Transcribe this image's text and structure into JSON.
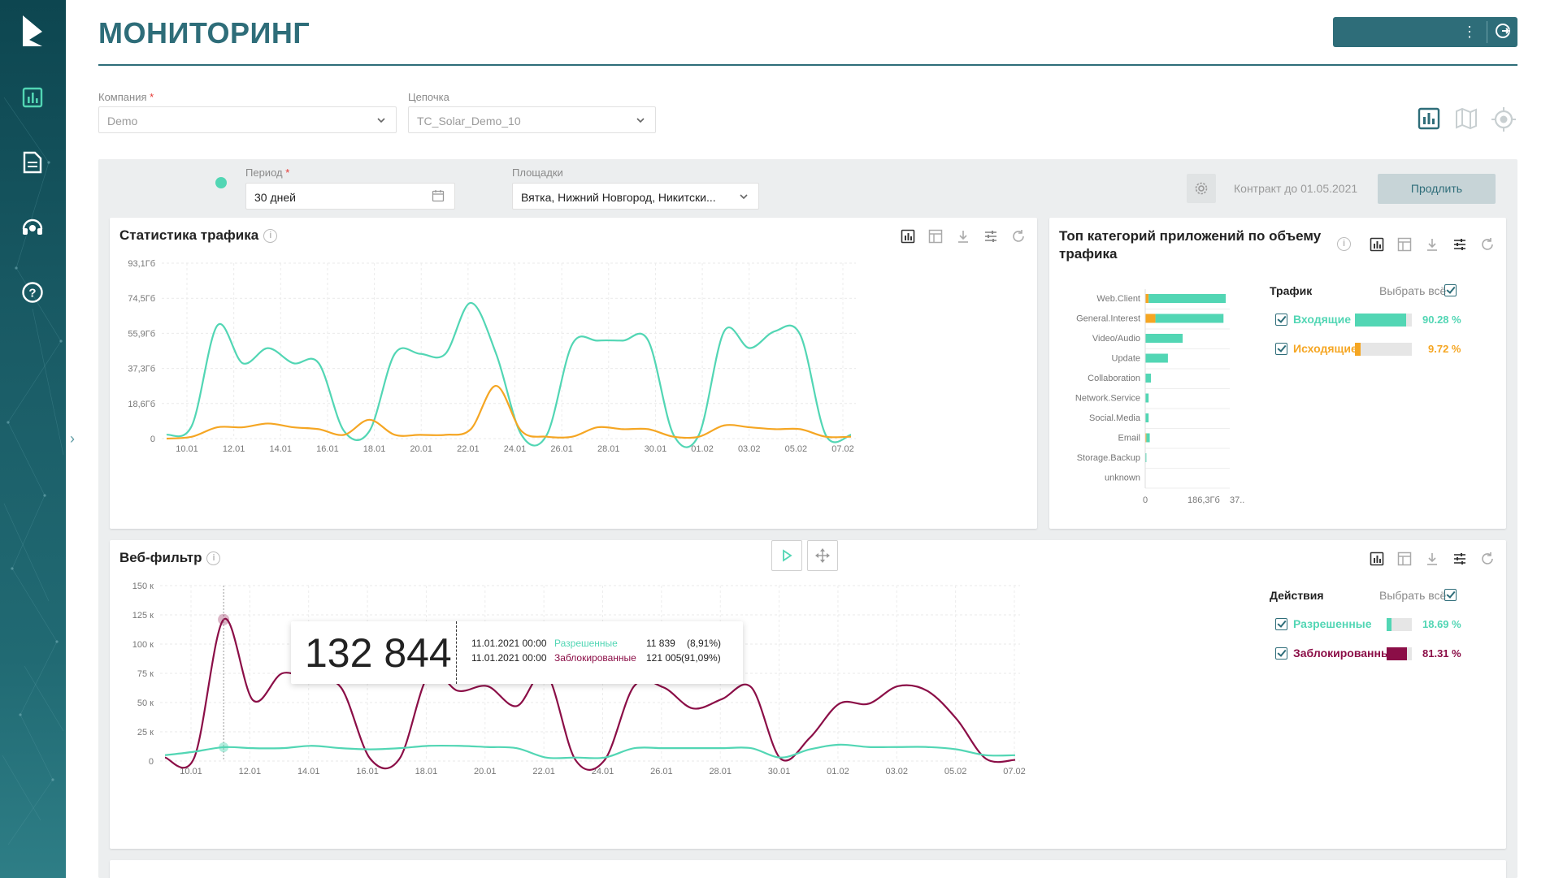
{
  "page": {
    "title": "МОНИТОРИНГ"
  },
  "filters": {
    "company": {
      "label": "Компания",
      "required": "*",
      "value": "Demo"
    },
    "chain": {
      "label": "Цепочка",
      "value": "TC_Solar_Demo_10"
    },
    "period": {
      "label": "Период",
      "required": "*",
      "value": "30 дней"
    },
    "sites": {
      "label": "Площадки",
      "value": "Вятка, Нижний Новгород, Никитски..."
    }
  },
  "contract": {
    "text": "Контракт до 01.05.2021",
    "renew_label": "Продлить"
  },
  "colors": {
    "accent": "#2e6d79",
    "incoming": "#52d6b4",
    "outgoing": "#f5a623",
    "blocked": "#8b0e47",
    "allowed": "#52d6b4"
  },
  "traffic_card": {
    "title": "Статистика трафика",
    "chart_data": {
      "type": "line",
      "yticks": [
        "93,1Гб",
        "74,5Гб",
        "55,9Гб",
        "37,3Гб",
        "18,6Гб",
        "0"
      ],
      "xticks": [
        "10.01",
        "12.01",
        "14.01",
        "16.01",
        "18.01",
        "20.01",
        "22.01",
        "24.01",
        "26.01",
        "28.01",
        "30.01",
        "01.02",
        "03.02",
        "05.02",
        "07.02"
      ],
      "ylim": [
        0,
        93.1
      ],
      "series": [
        {
          "name": "Входящие",
          "color": "#52d6b4",
          "values": [
            2,
            7,
            60,
            40,
            48,
            40,
            40,
            4,
            4,
            45,
            45,
            45,
            72,
            45,
            2,
            2,
            50,
            52,
            52,
            52,
            2,
            2,
            57,
            48,
            57,
            55,
            2,
            2
          ]
        },
        {
          "name": "Исходящие",
          "color": "#f5a623",
          "values": [
            0,
            1,
            6,
            6,
            8,
            6,
            5,
            2,
            10,
            2,
            2,
            2,
            5,
            28,
            4,
            1,
            1,
            6,
            5,
            5,
            1,
            1,
            7,
            6,
            5,
            5,
            1,
            1
          ]
        }
      ]
    }
  },
  "apps_card": {
    "title_line1": "Топ категорий приложений по объему",
    "title_line2": "трафика",
    "chart_data": {
      "type": "bar",
      "categories": [
        "Web.Client",
        "General.Interest",
        "Video/Audio",
        "Update",
        "Collaboration",
        "Network.Service",
        "Social.Media",
        "Email",
        "Storage.Backup",
        "unknown"
      ],
      "incoming": [
        340,
        300,
        165,
        100,
        25,
        15,
        15,
        15,
        5,
        0
      ],
      "outgoing": [
        15,
        45,
        0,
        0,
        0,
        0,
        0,
        5,
        0,
        0
      ],
      "xticks": [
        "0",
        "186,3Гб",
        "37..."
      ],
      "xlim": [
        0,
        372.6
      ]
    },
    "legend": {
      "header": "Трафик",
      "select_all": "Выбрать всё",
      "items": [
        {
          "label": "Входящие",
          "pct": "90.28 %",
          "value": 0.9028,
          "color": "#52d6b4"
        },
        {
          "label": "Исходящие",
          "pct": "9.72 %",
          "value": 0.0972,
          "color": "#f5a623"
        }
      ]
    }
  },
  "web_card": {
    "title": "Веб-фильтр",
    "chart_data": {
      "type": "line",
      "yticks": [
        "150 к",
        "125 к",
        "100 к",
        "75 к",
        "50 к",
        "25 к",
        "0"
      ],
      "xticks": [
        "10.01",
        "12.01",
        "14.01",
        "16.01",
        "18.01",
        "20.01",
        "22.01",
        "24.01",
        "26.01",
        "28.01",
        "30.01",
        "01.02",
        "03.02",
        "05.02",
        "07.02"
      ],
      "ylim": [
        0,
        150000
      ],
      "series": [
        {
          "name": "Заблокированные",
          "color": "#8b0e47",
          "values": [
            3000,
            3000,
            121005,
            52000,
            75000,
            68000,
            63000,
            2000,
            2000,
            74000,
            60000,
            64000,
            47000,
            75000,
            1000,
            1000,
            64000,
            63000,
            45000,
            53000,
            63000,
            2000,
            20000,
            49000,
            49000,
            64000,
            60000,
            36000,
            2000,
            1000
          ]
        },
        {
          "name": "Разрешенные",
          "color": "#52d6b4",
          "values": [
            5000,
            8000,
            11839,
            11000,
            11000,
            13000,
            11000,
            10000,
            11000,
            13000,
            13000,
            12000,
            11000,
            3000,
            3000,
            3000,
            11000,
            11000,
            11000,
            11000,
            11000,
            3000,
            10000,
            14000,
            12000,
            12000,
            12000,
            10000,
            5000,
            5000
          ]
        }
      ]
    },
    "tooltip": {
      "total": "132 844",
      "rows": [
        {
          "date": "11.01.2021 00:00",
          "name": "Разрешенные",
          "value": "11 839",
          "pct": "(8,91%)"
        },
        {
          "date": "11.01.2021 00:00",
          "name": "Заблокированные",
          "value": "121 005",
          "pct": "(91,09%)"
        }
      ]
    },
    "legend": {
      "header": "Действия",
      "select_all": "Выбрать всё",
      "items": [
        {
          "label": "Разрешенные",
          "pct": "18.69 %",
          "value": 0.1869,
          "color": "#52d6b4"
        },
        {
          "label": "Заблокированные",
          "pct": "81.31 %",
          "value": 0.8131,
          "color": "#8b0e47"
        }
      ]
    }
  }
}
